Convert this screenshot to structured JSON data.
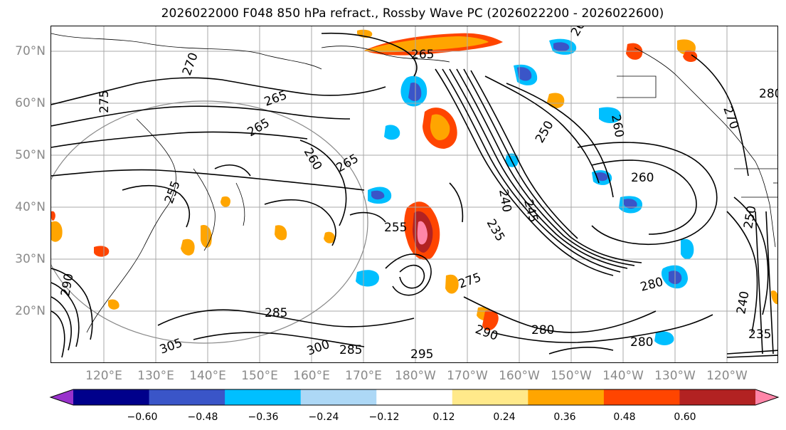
{
  "title": "2026022000 F048 850 hPa refract., Rossby Wave PC (2026022200 - 2026022600)",
  "lat_labels": [
    "70°N",
    "60°N",
    "50°N",
    "40°N",
    "30°N",
    "20°N"
  ],
  "lon_labels": [
    "120°E",
    "130°E",
    "140°E",
    "150°E",
    "160°E",
    "170°E",
    "180°W",
    "170°W",
    "160°W",
    "150°W",
    "140°W",
    "130°W",
    "120°W"
  ],
  "contour_labels": [
    "265",
    "270",
    "275",
    "265",
    "265",
    "260",
    "265",
    "260",
    "250",
    "255",
    "240",
    "245",
    "235",
    "255",
    "260",
    "275",
    "280",
    "290",
    "280",
    "285",
    "300",
    "305",
    "295",
    "280",
    "285",
    "290",
    "235",
    "240",
    "250",
    "260",
    "270",
    "280"
  ],
  "colorbar": {
    "colors": [
      "#9932CC",
      "#00008B",
      "#3A55C8",
      "#00BFFF",
      "#ADD8F6",
      "#FFFFFF",
      "#FFE98A",
      "#FFA500",
      "#FF4500",
      "#B22222",
      "#FF85A8"
    ],
    "tick_labels": [
      "−0.60",
      "−0.48",
      "−0.36",
      "−0.24",
      "−0.12",
      "0.12",
      "0.24",
      "0.36",
      "0.48",
      "0.60"
    ]
  }
}
